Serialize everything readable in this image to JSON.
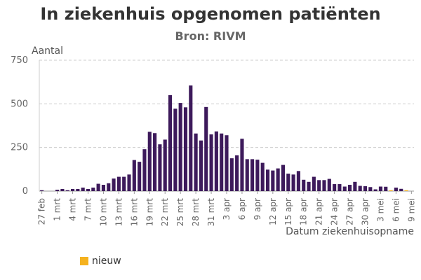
{
  "chart_data": {
    "type": "bar",
    "title": "In ziekenhuis opgenomen patiënten",
    "subtitle": "Bron: RIVM",
    "ylabel": "Aantal",
    "xlabel": "Datum ziekenhuisopname",
    "ylim": [
      0,
      750
    ],
    "yticks": [
      0,
      250,
      500,
      750
    ],
    "ytick_labels": [
      "0",
      "250",
      "500",
      "750"
    ],
    "grid": true,
    "categories": [
      "27 feb",
      "28 feb",
      "29 feb",
      "1 mrt",
      "2 mrt",
      "3 mrt",
      "4 mrt",
      "5 mrt",
      "6 mrt",
      "7 mrt",
      "8 mrt",
      "9 mrt",
      "10 mrt",
      "11 mrt",
      "12 mrt",
      "13 mrt",
      "14 mrt",
      "15 mrt",
      "16 mrt",
      "17 mrt",
      "18 mrt",
      "19 mrt",
      "20 mrt",
      "21 mrt",
      "22 mrt",
      "23 mrt",
      "24 mrt",
      "25 mrt",
      "26 mrt",
      "27 mrt",
      "28 mrt",
      "29 mrt",
      "30 mrt",
      "31 mrt",
      "1 apr",
      "2 apr",
      "3 apr",
      "4 apr",
      "5 apr",
      "6 apr",
      "7 apr",
      "8 apr",
      "9 apr",
      "10 apr",
      "11 apr",
      "12 apr",
      "13 apr",
      "14 apr",
      "15 apr",
      "16 apr",
      "17 apr",
      "18 apr",
      "19 apr",
      "20 apr",
      "21 apr",
      "22 apr",
      "23 apr",
      "24 apr",
      "25 apr",
      "26 apr",
      "27 apr",
      "28 apr",
      "29 apr",
      "30 apr",
      "1 mei",
      "2 mei",
      "3 mei",
      "4 mei",
      "5 mei",
      "6 mei",
      "7 mei",
      "8 mei",
      "9 mei"
    ],
    "xtick_labels": [
      "27 feb",
      "1 mrt",
      "4 mrt",
      "7 mrt",
      "10 mrt",
      "13 mrt",
      "16 mrt",
      "19 mrt",
      "22 mrt",
      "25 mrt",
      "28 mrt",
      "31 mrt",
      "3 apr",
      "6 apr",
      "9 apr",
      "12 apr",
      "15 apr",
      "18 apr",
      "21 apr",
      "24 apr",
      "27 apr",
      "30 apr",
      "3 mei",
      "6 mei",
      "9 mei"
    ],
    "series": [
      {
        "name": "",
        "color": "#3d1a5b",
        "values": [
          5,
          0,
          0,
          8,
          12,
          5,
          12,
          12,
          20,
          12,
          20,
          42,
          36,
          45,
          72,
          82,
          82,
          95,
          178,
          168,
          240,
          340,
          332,
          268,
          295,
          550,
          472,
          505,
          480,
          605,
          330,
          290,
          482,
          325,
          342,
          330,
          320,
          188,
          205,
          300,
          183,
          183,
          180,
          162,
          123,
          118,
          130,
          150,
          100,
          95,
          115,
          65,
          53,
          82,
          63,
          63,
          70,
          40,
          40,
          26,
          36,
          53,
          30,
          28,
          23,
          10,
          26,
          25,
          0,
          20,
          13,
          0,
          0
        ]
      },
      {
        "name": "nieuw",
        "color": "#f5b21f",
        "values": [
          0,
          0,
          0,
          0,
          0,
          0,
          0,
          0,
          0,
          0,
          0,
          0,
          0,
          0,
          0,
          0,
          0,
          0,
          0,
          0,
          0,
          0,
          0,
          0,
          0,
          0,
          0,
          0,
          0,
          0,
          0,
          0,
          0,
          0,
          0,
          0,
          0,
          0,
          0,
          0,
          0,
          0,
          0,
          0,
          0,
          0,
          0,
          0,
          0,
          0,
          0,
          0,
          0,
          0,
          0,
          0,
          0,
          0,
          0,
          0,
          0,
          0,
          0,
          0,
          0,
          0,
          0,
          0,
          5,
          0,
          0,
          5,
          0
        ]
      }
    ]
  }
}
